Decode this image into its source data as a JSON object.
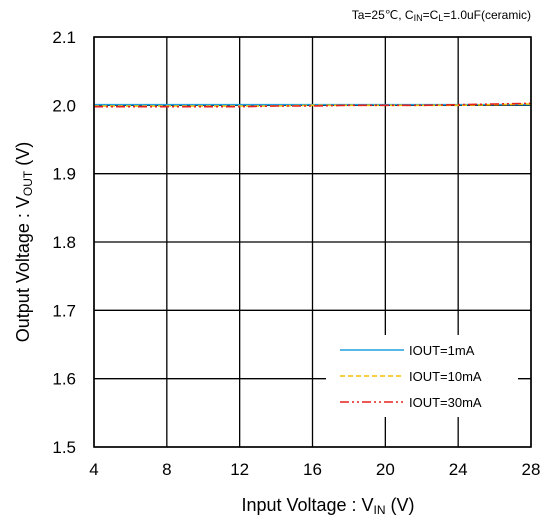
{
  "chart_data": {
    "type": "line",
    "title": "",
    "condition": {
      "prefix": "Ta=25℃,  C",
      "cin_sub": "IN",
      "mid": "=C",
      "cl_sub": "L",
      "suffix": "=1.0uF(ceramic)"
    },
    "xlabel": {
      "main": "Input Voltage : V",
      "sub": "IN",
      "unit": " (V)"
    },
    "ylabel": {
      "main": "Output Voltage : V",
      "sub": "OUT",
      "unit": " (V)"
    },
    "xlim": [
      4,
      28
    ],
    "ylim": [
      1.5,
      2.1
    ],
    "xticks": [
      "4",
      "8",
      "12",
      "16",
      "20",
      "24",
      "28"
    ],
    "yticks": [
      "1.5",
      "1.6",
      "1.7",
      "1.8",
      "1.9",
      "2.0",
      "2.1"
    ],
    "grid": true,
    "legend_position": "bottom-right",
    "series": [
      {
        "name": "IOUT=1mA",
        "color": "#1f9fe0",
        "dash": "solid",
        "x": [
          4,
          6,
          8,
          10,
          12,
          14,
          16,
          18,
          20,
          22,
          24,
          26,
          28
        ],
        "y": [
          2.001,
          2.001,
          2.001,
          2.001,
          2.001,
          2.001,
          2.001,
          2.001,
          2.001,
          2.001,
          2.001,
          2.001,
          2.001
        ]
      },
      {
        "name": "IOUT=10mA",
        "color": "#f0c000",
        "dash": "dashed",
        "x": [
          4,
          6,
          8,
          10,
          12,
          14,
          16,
          18,
          20,
          22,
          24,
          26,
          28
        ],
        "y": [
          1.999,
          1.999,
          1.999,
          1.999,
          1.999,
          1.999,
          2.0,
          2.0,
          2.0,
          2.0,
          2.0,
          2.001,
          2.002
        ]
      },
      {
        "name": "IOUT=30mA",
        "color": "#e8211b",
        "dash": "dashdot",
        "x": [
          4,
          6,
          8,
          10,
          12,
          14,
          16,
          18,
          20,
          22,
          24,
          26,
          28
        ],
        "y": [
          1.998,
          1.998,
          1.998,
          1.998,
          1.998,
          1.999,
          1.999,
          2.0,
          2.0,
          2.0,
          2.001,
          2.002,
          2.003
        ]
      }
    ]
  }
}
